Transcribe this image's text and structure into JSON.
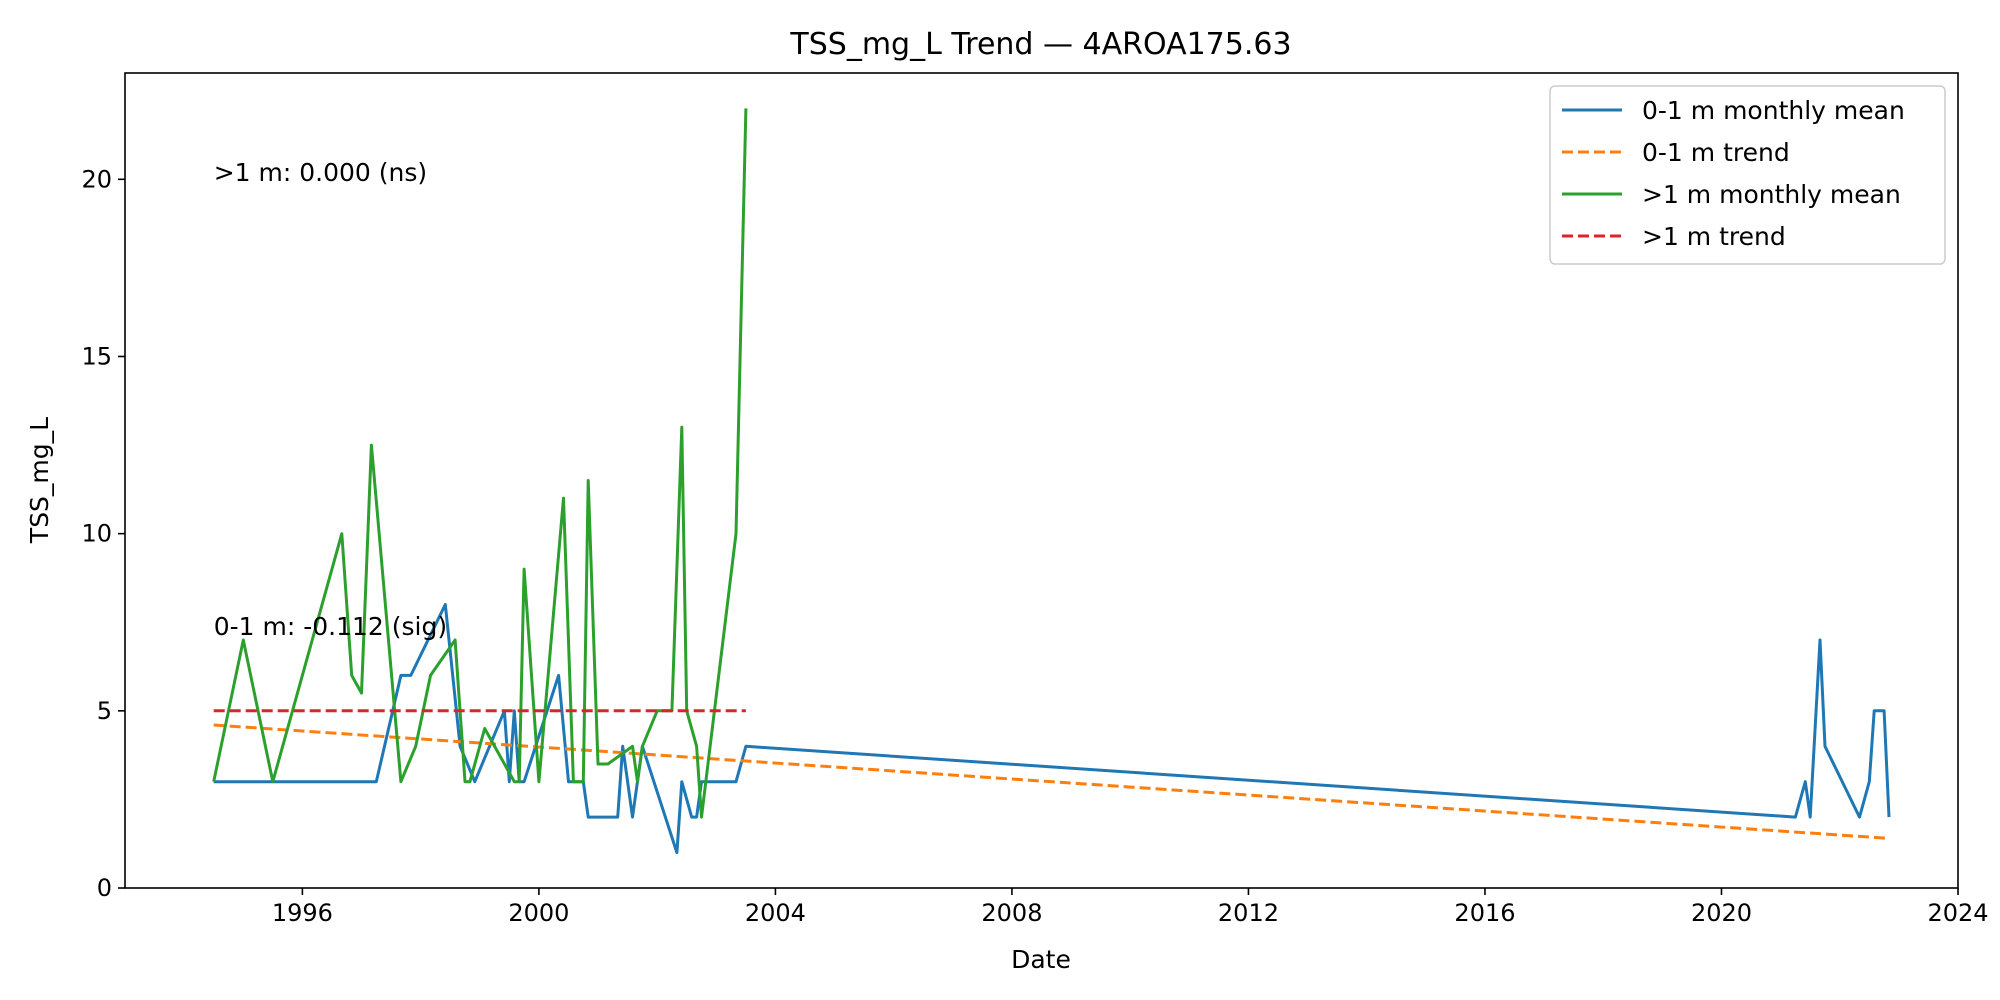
{
  "chart_data": {
    "type": "line",
    "title": "TSS_mg_L Trend — 4AROA175.63",
    "xlabel": "Date",
    "ylabel": "TSS_mg_L",
    "x_type": "date",
    "xlim": [
      "1993-01-01",
      "2024-01-01"
    ],
    "ylim": [
      0,
      23
    ],
    "x_ticks": [
      "1996",
      "2000",
      "2004",
      "2008",
      "2012",
      "2016",
      "2020",
      "2024"
    ],
    "y_ticks": [
      0,
      5,
      10,
      15,
      20
    ],
    "grid": false,
    "legend_position": "top-right",
    "annotations": [
      {
        "text": ">1 m: 0.000 (ns)",
        "x": "1994-07",
        "y": 20.2
      },
      {
        "text": "0-1 m: -0.112 (sig)",
        "x": "1994-07",
        "y": 7.4
      }
    ],
    "series": [
      {
        "name": "0-1 m monthly mean",
        "style": "solid",
        "color": "#1f77b4",
        "x": [
          "1994-07",
          "1995-04",
          "1996-04",
          "1997-04",
          "1997-09",
          "1997-11",
          "1998-06",
          "1998-09",
          "1998-12",
          "1999-06",
          "1999-07",
          "1999-08",
          "1999-09",
          "1999-10",
          "2000-05",
          "2000-07",
          "2000-10",
          "2000-11",
          "2001-05",
          "2001-06",
          "2001-08",
          "2001-10",
          "2002-05",
          "2002-06",
          "2002-08",
          "2002-09",
          "2002-10",
          "2003-05",
          "2003-07",
          "2021-04",
          "2021-06",
          "2021-07",
          "2021-09",
          "2021-10",
          "2022-05",
          "2022-07",
          "2022-08",
          "2022-10",
          "2022-11"
        ],
        "values": [
          3,
          3,
          3,
          3,
          6,
          6,
          8,
          4,
          3,
          5,
          3,
          5,
          3,
          3,
          6,
          3,
          3,
          2,
          2,
          4,
          2,
          4,
          1,
          3,
          2,
          2,
          3,
          3,
          4,
          2,
          3,
          2,
          7,
          4,
          2,
          3,
          5,
          5,
          2
        ]
      },
      {
        "name": "0-1 m trend",
        "style": "dashed",
        "color": "#ff7f0e",
        "x": [
          "1994-07",
          "2022-11"
        ],
        "values": [
          4.6,
          1.4
        ]
      },
      {
        "name": ">1 m monthly mean",
        "style": "solid",
        "color": "#2ca02c",
        "x": [
          "1994-07",
          "1995-01",
          "1995-07",
          "1996-09",
          "1996-11",
          "1997-01",
          "1997-03",
          "1997-09",
          "1997-12",
          "1998-03",
          "1998-08",
          "1998-10",
          "1998-11",
          "1999-02",
          "1999-08",
          "1999-09",
          "1999-10",
          "2000-01",
          "2000-06",
          "2000-08",
          "2000-10",
          "2000-11",
          "2001-01",
          "2001-03",
          "2001-08",
          "2001-09",
          "2001-10",
          "2002-01",
          "2002-04",
          "2002-06",
          "2002-07",
          "2002-09",
          "2002-10",
          "2003-05",
          "2003-07"
        ],
        "values": [
          3,
          7,
          3,
          10,
          6,
          5.5,
          12.5,
          3,
          4,
          6,
          7,
          3,
          3,
          4.5,
          3,
          3,
          9,
          3,
          11,
          3,
          3,
          11.5,
          3.5,
          3.5,
          4,
          3,
          4,
          5,
          5,
          13,
          5,
          4,
          2,
          10,
          22
        ]
      },
      {
        "name": ">1 m trend",
        "style": "dashed",
        "color": "#d62728",
        "x": [
          "1994-07",
          "2003-07"
        ],
        "values": [
          5.0,
          5.0
        ]
      }
    ]
  }
}
